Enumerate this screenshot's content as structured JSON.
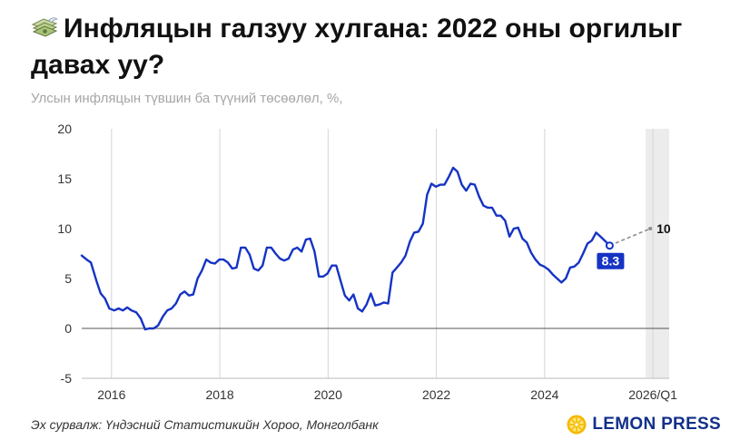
{
  "header": {
    "title": "Инфляцын галзуу хулгана: 2022 оны оргилыг давах уу?",
    "subtitle": "Улсын инфляцын түвшин ба түүний төсөөлөл, %,",
    "icon": "money-with-wings-icon"
  },
  "footer": {
    "source": "Эх сурвалж: Үндэсний Статистикийн Хороо, Монголбанк",
    "brand": "LEMON PRESS",
    "brand_icon": "lemon-slice-icon"
  },
  "colors": {
    "line": "#1533c4",
    "forecast": "#8c8c8c",
    "label_bg": "#1533c4",
    "shade": "#e6e6e6",
    "brand": "#12308a",
    "lemon": "#f5b800"
  },
  "chart_data": {
    "type": "line",
    "title": "Инфляцын галзуу хулгана: 2022 оны оргилыг давах уу?",
    "subtitle": "Улсын инфляцын түвшин ба түүний төсөөлөл, %,",
    "xlabel": "",
    "ylabel": "",
    "ylim": [
      -5,
      20
    ],
    "yticks": [
      -5,
      0,
      5,
      10,
      15,
      20
    ],
    "xticks": [
      {
        "label": "2016",
        "x": 2016.0
      },
      {
        "label": "2018",
        "x": 2018.0
      },
      {
        "label": "2020",
        "x": 2020.0
      },
      {
        "label": "2022",
        "x": 2022.0
      },
      {
        "label": "2024",
        "x": 2024.0
      },
      {
        "label": "2026/Q1",
        "x": 2026.0
      }
    ],
    "grid": {
      "vertical": true,
      "horizontal": false
    },
    "forecast_region": [
      2025.33,
      2025.95
    ],
    "series": [
      {
        "values": [
          [
            2015.45,
            7.3
          ],
          [
            2015.54,
            6.9
          ],
          [
            2015.62,
            6.6
          ],
          [
            2015.72,
            4.8
          ],
          [
            2015.8,
            3.5
          ],
          [
            2015.88,
            3.0
          ],
          [
            2015.96,
            2.0
          ],
          [
            2016.05,
            1.8
          ],
          [
            2016.13,
            2.0
          ],
          [
            2016.21,
            1.8
          ],
          [
            2016.29,
            2.1
          ],
          [
            2016.37,
            1.8
          ],
          [
            2016.46,
            1.6
          ],
          [
            2016.54,
            1.0
          ],
          [
            2016.62,
            -0.1
          ],
          [
            2016.7,
            0.0
          ],
          [
            2016.78,
            0.0
          ],
          [
            2016.86,
            0.3
          ],
          [
            2016.95,
            1.2
          ],
          [
            2017.03,
            1.8
          ],
          [
            2017.11,
            2.0
          ],
          [
            2017.19,
            2.5
          ],
          [
            2017.27,
            3.4
          ],
          [
            2017.35,
            3.7
          ],
          [
            2017.43,
            3.3
          ],
          [
            2017.51,
            3.4
          ],
          [
            2017.59,
            5.0
          ],
          [
            2017.67,
            5.8
          ],
          [
            2017.75,
            6.9
          ],
          [
            2017.83,
            6.6
          ],
          [
            2017.91,
            6.5
          ],
          [
            2017.99,
            6.9
          ],
          [
            2018.07,
            6.9
          ],
          [
            2018.15,
            6.6
          ],
          [
            2018.23,
            6.0
          ],
          [
            2018.31,
            6.1
          ],
          [
            2018.39,
            8.1
          ],
          [
            2018.47,
            8.1
          ],
          [
            2018.55,
            7.4
          ],
          [
            2018.63,
            6.0
          ],
          [
            2018.71,
            5.8
          ],
          [
            2018.79,
            6.3
          ],
          [
            2018.87,
            8.1
          ],
          [
            2018.95,
            8.1
          ],
          [
            2019.03,
            7.5
          ],
          [
            2019.11,
            7.0
          ],
          [
            2019.19,
            6.8
          ],
          [
            2019.27,
            7.0
          ],
          [
            2019.35,
            7.9
          ],
          [
            2019.43,
            8.1
          ],
          [
            2019.51,
            7.7
          ],
          [
            2019.59,
            8.9
          ],
          [
            2019.67,
            9.0
          ],
          [
            2019.75,
            7.7
          ],
          [
            2019.83,
            5.2
          ],
          [
            2019.91,
            5.2
          ],
          [
            2019.99,
            5.5
          ],
          [
            2020.07,
            6.3
          ],
          [
            2020.15,
            6.3
          ],
          [
            2020.23,
            4.8
          ],
          [
            2020.31,
            3.3
          ],
          [
            2020.39,
            2.8
          ],
          [
            2020.47,
            3.4
          ],
          [
            2020.55,
            2.0
          ],
          [
            2020.63,
            1.7
          ],
          [
            2020.71,
            2.4
          ],
          [
            2020.79,
            3.5
          ],
          [
            2020.87,
            2.3
          ],
          [
            2020.95,
            2.4
          ],
          [
            2021.03,
            2.6
          ],
          [
            2021.11,
            2.5
          ],
          [
            2021.19,
            5.6
          ],
          [
            2021.27,
            6.1
          ],
          [
            2021.35,
            6.6
          ],
          [
            2021.43,
            7.3
          ],
          [
            2021.51,
            8.7
          ],
          [
            2021.59,
            9.6
          ],
          [
            2021.67,
            9.7
          ],
          [
            2021.75,
            10.5
          ],
          [
            2021.83,
            13.4
          ],
          [
            2021.91,
            14.5
          ],
          [
            2021.99,
            14.2
          ],
          [
            2022.07,
            14.4
          ],
          [
            2022.15,
            14.4
          ],
          [
            2022.23,
            15.2
          ],
          [
            2022.31,
            16.1
          ],
          [
            2022.39,
            15.7
          ],
          [
            2022.47,
            14.4
          ],
          [
            2022.55,
            13.8
          ],
          [
            2022.63,
            14.5
          ],
          [
            2022.71,
            14.4
          ],
          [
            2022.79,
            13.2
          ],
          [
            2022.87,
            12.3
          ],
          [
            2022.95,
            12.1
          ],
          [
            2023.03,
            12.1
          ],
          [
            2023.11,
            11.3
          ],
          [
            2023.19,
            11.3
          ],
          [
            2023.27,
            10.8
          ],
          [
            2023.35,
            9.2
          ],
          [
            2023.43,
            10.0
          ],
          [
            2023.51,
            10.1
          ],
          [
            2023.59,
            9.0
          ],
          [
            2023.67,
            8.6
          ],
          [
            2023.75,
            7.6
          ],
          [
            2023.83,
            6.9
          ],
          [
            2023.91,
            6.4
          ],
          [
            2023.99,
            6.2
          ],
          [
            2024.07,
            5.9
          ],
          [
            2024.15,
            5.4
          ],
          [
            2024.23,
            5.0
          ],
          [
            2024.31,
            4.6
          ],
          [
            2024.39,
            5.0
          ],
          [
            2024.47,
            6.1
          ],
          [
            2024.55,
            6.2
          ],
          [
            2024.63,
            6.6
          ],
          [
            2024.71,
            7.5
          ],
          [
            2024.79,
            8.5
          ],
          [
            2024.87,
            8.8
          ],
          [
            2024.95,
            9.6
          ],
          [
            2025.03,
            9.2
          ],
          [
            2025.11,
            8.8
          ],
          [
            2025.2,
            8.3
          ]
        ]
      },
      {
        "style": "dashed",
        "values": [
          [
            2025.2,
            8.3
          ],
          [
            2025.95,
            10.0
          ]
        ]
      }
    ],
    "annotations": [
      {
        "text": "8.3",
        "x": 2025.2,
        "y": 8.3,
        "style": "boxed"
      },
      {
        "text": "10",
        "x": 2025.95,
        "y": 10.0,
        "style": "bold"
      }
    ]
  }
}
